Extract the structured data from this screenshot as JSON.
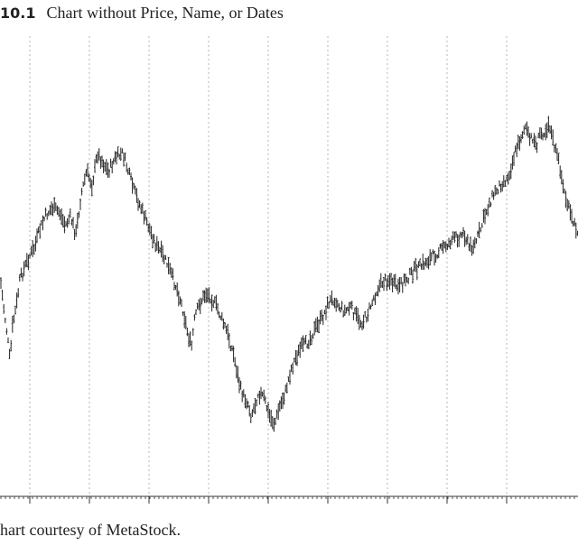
{
  "caption": {
    "figure_number": "10.1",
    "title": "Chart without Price, Name, or Dates"
  },
  "credit": "hart courtesy of MetaStock.",
  "chart_data": {
    "type": "bar",
    "style": "OHLC price bars",
    "title": "",
    "xlabel": "",
    "ylabel": "",
    "axes_labels_shown": false,
    "grid": "vertical dotted lines",
    "vertical_gridline_count": 9,
    "bar_color": "#222222",
    "anchor_closes": [
      [
        0,
        265
      ],
      [
        4,
        300
      ],
      [
        8,
        330
      ],
      [
        11,
        360
      ],
      [
        14,
        320
      ],
      [
        18,
        300
      ],
      [
        22,
        270
      ],
      [
        28,
        255
      ],
      [
        32,
        245
      ],
      [
        38,
        235
      ],
      [
        44,
        215
      ],
      [
        50,
        200
      ],
      [
        58,
        190
      ],
      [
        66,
        195
      ],
      [
        72,
        210
      ],
      [
        78,
        200
      ],
      [
        84,
        220
      ],
      [
        90,
        175
      ],
      [
        96,
        150
      ],
      [
        102,
        165
      ],
      [
        108,
        130
      ],
      [
        114,
        140
      ],
      [
        120,
        150
      ],
      [
        128,
        135
      ],
      [
        136,
        130
      ],
      [
        142,
        150
      ],
      [
        148,
        170
      ],
      [
        156,
        190
      ],
      [
        164,
        210
      ],
      [
        172,
        230
      ],
      [
        178,
        240
      ],
      [
        184,
        250
      ],
      [
        190,
        265
      ],
      [
        196,
        280
      ],
      [
        202,
        300
      ],
      [
        208,
        330
      ],
      [
        212,
        345
      ],
      [
        216,
        310
      ],
      [
        222,
        295
      ],
      [
        228,
        285
      ],
      [
        234,
        290
      ],
      [
        240,
        300
      ],
      [
        246,
        315
      ],
      [
        252,
        330
      ],
      [
        258,
        350
      ],
      [
        262,
        370
      ],
      [
        266,
        390
      ],
      [
        270,
        400
      ],
      [
        274,
        405
      ],
      [
        278,
        420
      ],
      [
        282,
        410
      ],
      [
        286,
        395
      ],
      [
        292,
        400
      ],
      [
        298,
        420
      ],
      [
        304,
        430
      ],
      [
        310,
        410
      ],
      [
        316,
        395
      ],
      [
        322,
        370
      ],
      [
        328,
        355
      ],
      [
        334,
        345
      ],
      [
        340,
        340
      ],
      [
        346,
        330
      ],
      [
        352,
        320
      ],
      [
        358,
        310
      ],
      [
        364,
        295
      ],
      [
        370,
        290
      ],
      [
        376,
        300
      ],
      [
        382,
        305
      ],
      [
        388,
        300
      ],
      [
        394,
        310
      ],
      [
        400,
        318
      ],
      [
        406,
        310
      ],
      [
        412,
        295
      ],
      [
        418,
        280
      ],
      [
        424,
        272
      ],
      [
        430,
        270
      ],
      [
        436,
        275
      ],
      [
        442,
        280
      ],
      [
        448,
        270
      ],
      [
        454,
        265
      ],
      [
        460,
        258
      ],
      [
        466,
        255
      ],
      [
        472,
        250
      ],
      [
        478,
        245
      ],
      [
        484,
        240
      ],
      [
        490,
        235
      ],
      [
        496,
        230
      ],
      [
        502,
        225
      ],
      [
        508,
        222
      ],
      [
        514,
        218
      ],
      [
        520,
        235
      ],
      [
        526,
        230
      ],
      [
        532,
        215
      ],
      [
        538,
        195
      ],
      [
        544,
        180
      ],
      [
        550,
        170
      ],
      [
        556,
        162
      ],
      [
        562,
        158
      ],
      [
        566,
        145
      ],
      [
        570,
        130
      ],
      [
        574,
        120
      ],
      [
        578,
        108
      ],
      [
        582,
        100
      ],
      [
        586,
        115
      ],
      [
        590,
        112
      ],
      [
        594,
        122
      ],
      [
        598,
        108
      ],
      [
        604,
        105
      ],
      [
        608,
        95
      ],
      [
        612,
        115
      ],
      [
        616,
        130
      ],
      [
        620,
        145
      ],
      [
        624,
        170
      ],
      [
        628,
        185
      ],
      [
        632,
        200
      ],
      [
        636,
        210
      ],
      [
        640,
        215
      ]
    ]
  }
}
